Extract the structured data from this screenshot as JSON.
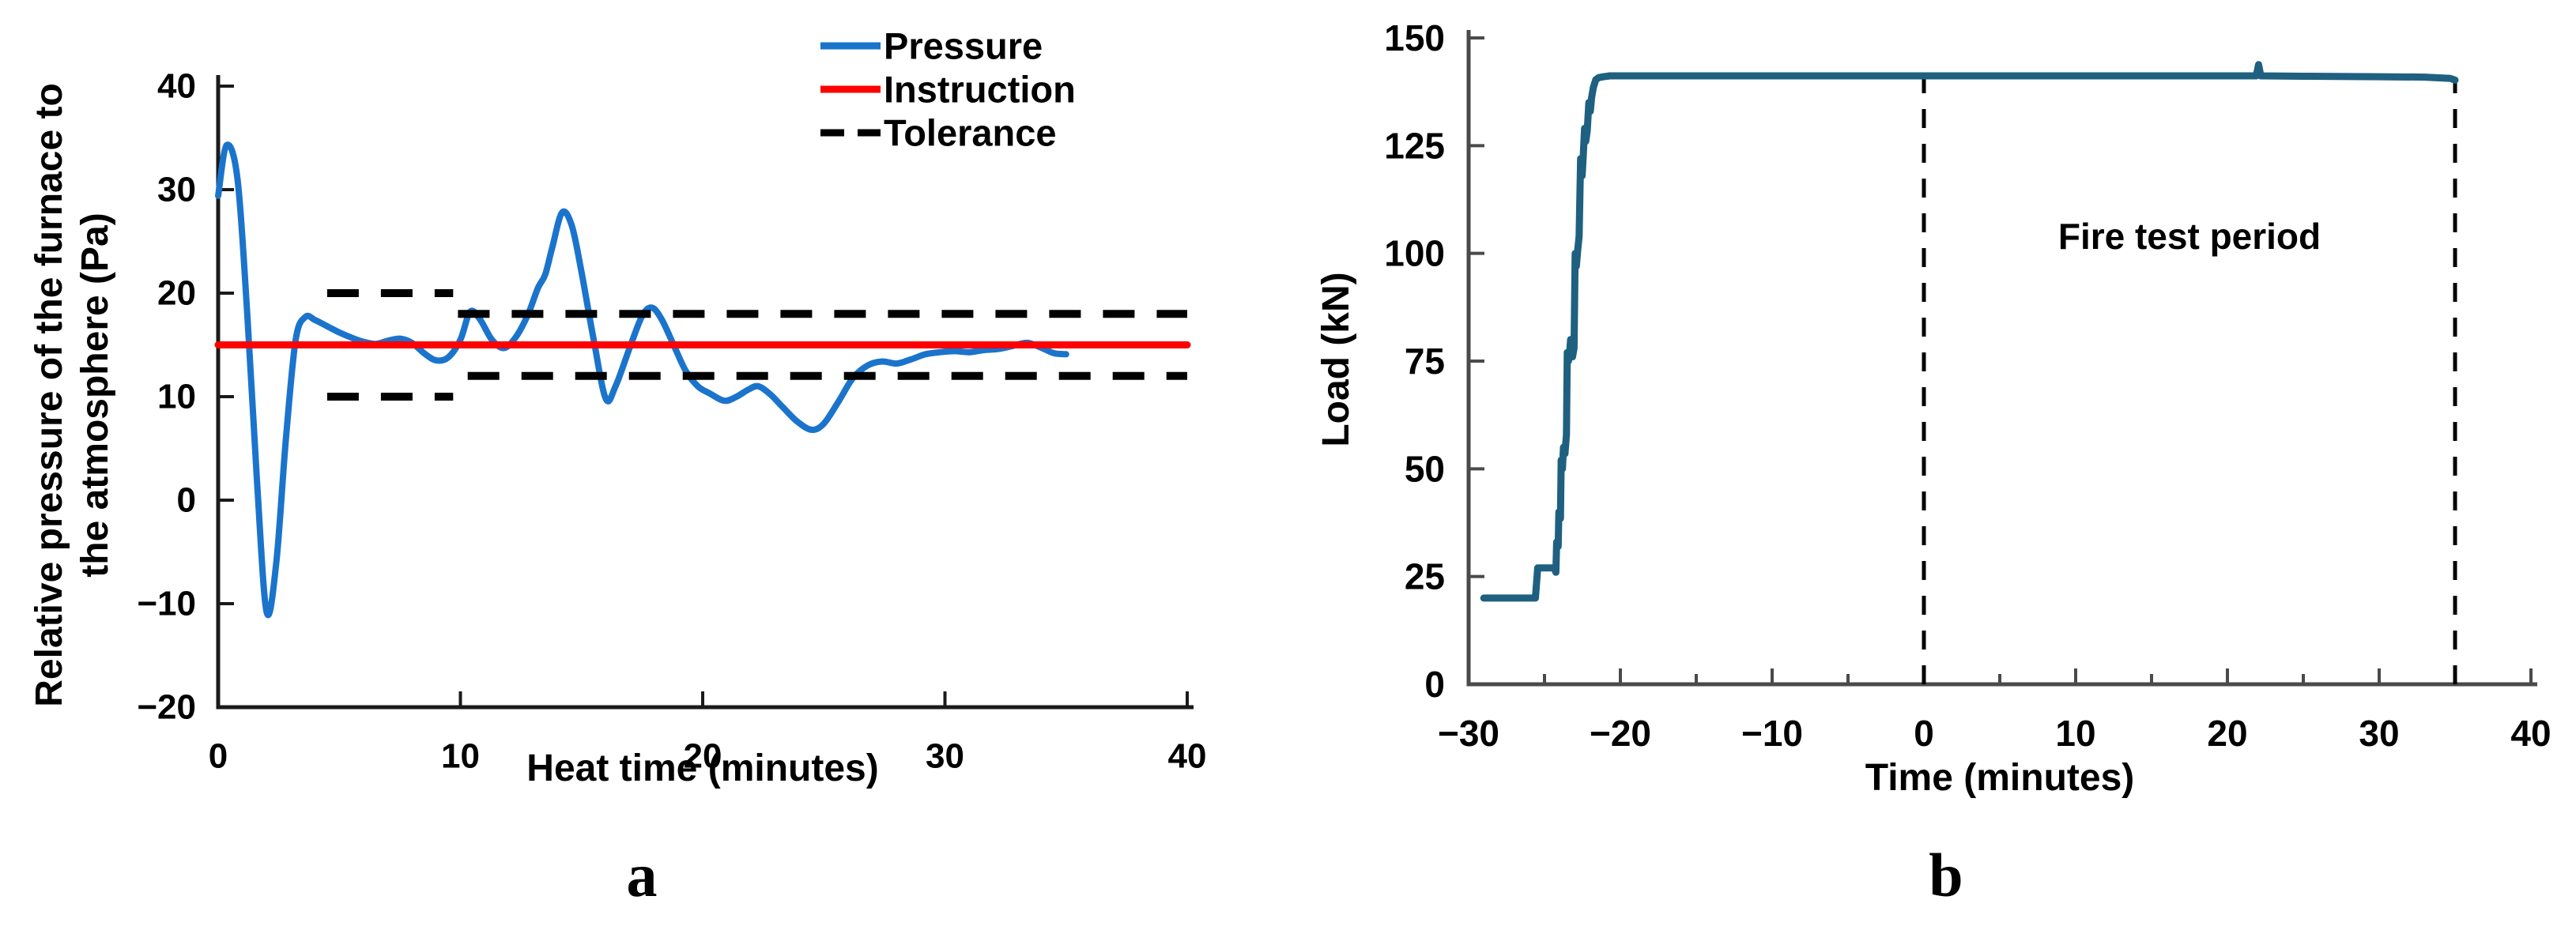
{
  "figure": {
    "background": "#ffffff",
    "panel_labels": {
      "a": "a",
      "b": "b"
    }
  },
  "chart_data": [
    {
      "id": "pressure-chart",
      "type": "line",
      "title": "",
      "xlabel": "Heat time (minutes)",
      "ylabel_lines": [
        "Relative pressure of the furnace to",
        "the atmosphere (Pa)"
      ],
      "xlim": [
        0,
        40
      ],
      "ylim": [
        -20,
        40
      ],
      "xticks": [
        0,
        10,
        20,
        30,
        40
      ],
      "yticks": [
        -20,
        -10,
        0,
        10,
        20,
        30,
        40
      ],
      "grid": false,
      "legend_position": "top-right",
      "legend": [
        {
          "label": "Pressure",
          "color": "#1b74cc",
          "dash": "solid"
        },
        {
          "label": "Instruction",
          "color": "#ff0000",
          "dash": "solid"
        },
        {
          "label": "Tolerance",
          "color": "#000000",
          "dash": "dashed"
        }
      ],
      "series": [
        {
          "name": "Pressure",
          "color": "#1b74cc",
          "width": 8,
          "dash": "solid",
          "smooth": true,
          "x": [
            0,
            0.35,
            0.8,
            1.2,
            1.6,
            2.0,
            2.4,
            2.8,
            3.2,
            3.6,
            4.0,
            4.5,
            5.0,
            5.5,
            6.0,
            6.5,
            7.0,
            7.5,
            8.0,
            8.5,
            9.0,
            9.5,
            10.0,
            10.4,
            10.8,
            11.3,
            11.8,
            12.3,
            12.8,
            13.2,
            13.5,
            13.8,
            14.2,
            14.6,
            15.0,
            15.5,
            16.0,
            16.4,
            17.0,
            17.5,
            17.9,
            18.3,
            18.8,
            19.3,
            19.8,
            20.3,
            20.9,
            21.4,
            21.9,
            22.3,
            22.8,
            23.3,
            23.9,
            24.5,
            25.0,
            25.6,
            26.2,
            26.8,
            27.4,
            28.0,
            28.6,
            29.2,
            29.8,
            30.4,
            31.0,
            31.6,
            32.2,
            32.8,
            33.4,
            34.0,
            34.5,
            35.0
          ],
          "y": [
            29.4,
            34.3,
            31.0,
            18.0,
            2.0,
            -10.8,
            -6.0,
            6.0,
            15.5,
            17.7,
            17.4,
            16.8,
            16.2,
            15.7,
            15.3,
            15.1,
            15.4,
            15.6,
            15.2,
            14.2,
            13.5,
            13.8,
            15.5,
            18.2,
            17.5,
            15.5,
            14.7,
            15.8,
            18.0,
            20.5,
            21.8,
            24.5,
            27.8,
            26.5,
            22.0,
            15.5,
            9.8,
            11.0,
            14.8,
            17.8,
            18.6,
            17.5,
            15.0,
            12.5,
            11.0,
            10.3,
            9.6,
            10.0,
            10.7,
            11.0,
            10.2,
            9.0,
            7.6,
            6.8,
            7.4,
            9.5,
            11.8,
            13.0,
            13.4,
            13.2,
            13.6,
            14.1,
            14.3,
            14.4,
            14.3,
            14.5,
            14.6,
            14.9,
            15.2,
            14.7,
            14.2,
            14.1
          ]
        },
        {
          "name": "Instruction",
          "color": "#ff0000",
          "width": 9,
          "dash": "solid",
          "smooth": false,
          "x": [
            0,
            40
          ],
          "y": [
            15,
            15
          ]
        },
        {
          "name": "Tolerance upper early",
          "color": "#000000",
          "width": 10,
          "dash": "dashed",
          "smooth": false,
          "x": [
            4.5,
            9.7
          ],
          "y": [
            20,
            20
          ]
        },
        {
          "name": "Tolerance lower early",
          "color": "#000000",
          "width": 10,
          "dash": "dashed",
          "smooth": false,
          "x": [
            4.5,
            9.7
          ],
          "y": [
            10,
            10
          ]
        },
        {
          "name": "Tolerance upper late",
          "color": "#000000",
          "width": 10,
          "dash": "dashed",
          "smooth": false,
          "x": [
            9.9,
            40
          ],
          "y": [
            18,
            18
          ]
        },
        {
          "name": "Tolerance lower late",
          "color": "#000000",
          "width": 10,
          "dash": "dashed",
          "smooth": false,
          "x": [
            10.3,
            40
          ],
          "y": [
            12,
            12
          ]
        }
      ]
    },
    {
      "id": "load-chart",
      "type": "line",
      "title": "",
      "xlabel": "Time (minutes)",
      "ylabel_lines": [
        "Load (kN)"
      ],
      "xlim": [
        -30,
        40
      ],
      "ylim": [
        0,
        150
      ],
      "xticks": [
        -30,
        -20,
        -10,
        0,
        10,
        20,
        30,
        40
      ],
      "xminor_step": 5,
      "yticks": [
        0,
        25,
        50,
        75,
        100,
        125,
        150
      ],
      "grid": false,
      "annotations": [
        {
          "text": "Fire test period",
          "x": 17.5,
          "y": 104
        }
      ],
      "vlines": [
        {
          "x": 0,
          "y0": 0,
          "y1": 143,
          "dash": "dashed",
          "color": "#000000",
          "width": 5
        },
        {
          "x": 35,
          "y0": 0,
          "y1": 140.5,
          "dash": "dashed",
          "color": "#000000",
          "width": 5
        }
      ],
      "series": [
        {
          "name": "Load",
          "color": "#1f6080",
          "width": 9,
          "dash": "solid",
          "smooth": false,
          "x": [
            -29,
            -25.6,
            -25.45,
            -24.35,
            -24.25,
            -24.2,
            -24.1,
            -24.05,
            -23.95,
            -23.9,
            -23.82,
            -23.75,
            -23.65,
            -23.55,
            -23.5,
            -23.42,
            -23.35,
            -23.28,
            -23.15,
            -23.05,
            -22.98,
            -22.9,
            -22.82,
            -22.72,
            -22.62,
            -22.52,
            -22.45,
            -22.36,
            -22.28,
            -22.18,
            -22.08,
            -21.98,
            -21.9,
            -21.78,
            -21.62,
            -21.42,
            -21.1,
            -20.7,
            -19,
            -15,
            -10,
            -5,
            0,
            5,
            10,
            15,
            20,
            21.9,
            22.05,
            22.2,
            25,
            30,
            33,
            34.7,
            35
          ],
          "y": [
            20,
            20,
            27,
            27,
            26,
            33,
            32,
            40,
            38.5,
            52,
            50,
            55,
            53.5,
            58,
            77,
            75,
            76.5,
            80,
            76,
            78,
            100,
            97,
            100.5,
            104,
            122,
            118,
            122.5,
            129,
            126,
            128.5,
            135,
            133,
            136,
            138.5,
            140.3,
            140.8,
            141,
            141.2,
            141.2,
            141.2,
            141.2,
            141.2,
            141.2,
            141.2,
            141.2,
            141.2,
            141.2,
            141.2,
            143.8,
            141.2,
            141.1,
            141,
            140.9,
            140.6,
            140.2
          ]
        }
      ]
    }
  ]
}
